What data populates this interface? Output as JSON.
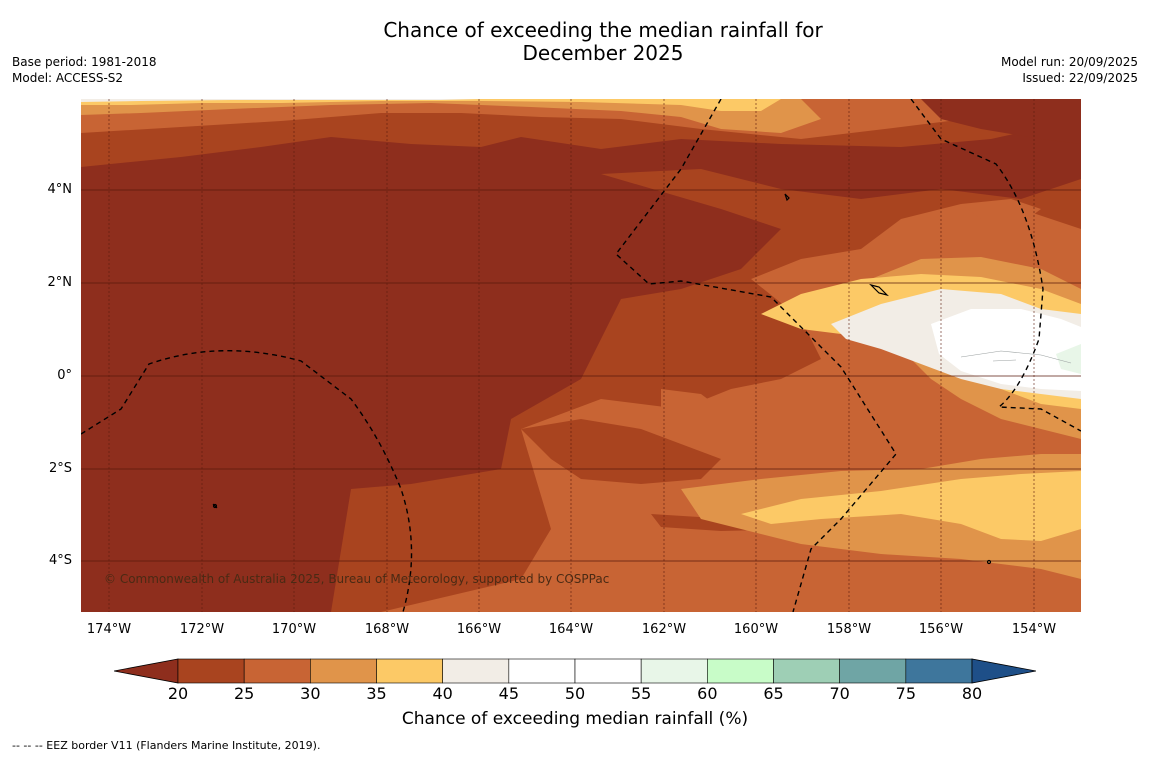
{
  "title": {
    "line1": "Chance of exceeding the median rainfall for",
    "line2": "December 2025"
  },
  "meta_left": {
    "base_period": "Base period: 1981-2018",
    "model": "Model: ACCESS-S2"
  },
  "meta_right": {
    "model_run": "Model run: 20/09/2025",
    "issued": "Issued: 22/09/2025"
  },
  "map": {
    "lat_labels": [
      "4°N",
      "2°N",
      "0°",
      "2°S",
      "4°S"
    ],
    "lon_labels": [
      "174°W",
      "172°W",
      "170°W",
      "168°W",
      "166°W",
      "164°W",
      "162°W",
      "160°W",
      "158°W",
      "156°W",
      "154°W"
    ],
    "copyright": "© Commonwealth of Australia 2025, Bureau of Meteorology, supported by COSPPac"
  },
  "colorbar": {
    "ticks": [
      "20",
      "25",
      "30",
      "35",
      "40",
      "45",
      "50",
      "55",
      "60",
      "65",
      "70",
      "75",
      "80"
    ],
    "colors": [
      "#8e2e1d",
      "#a9441f",
      "#c86434",
      "#e0944a",
      "#fcc966",
      "#f2ede6",
      "#ffffff",
      "#ffffff",
      "#e8f6e8",
      "#c8fcc8",
      "#9ecfb5",
      "#6fa5a5",
      "#3e769c",
      "#1e4f88"
    ],
    "label": "Chance of exceeding median rainfall (%)"
  },
  "footer": {
    "eez_note": "--  --  -- EEZ border V11 (Flanders Marine Institute, 2019)."
  }
}
